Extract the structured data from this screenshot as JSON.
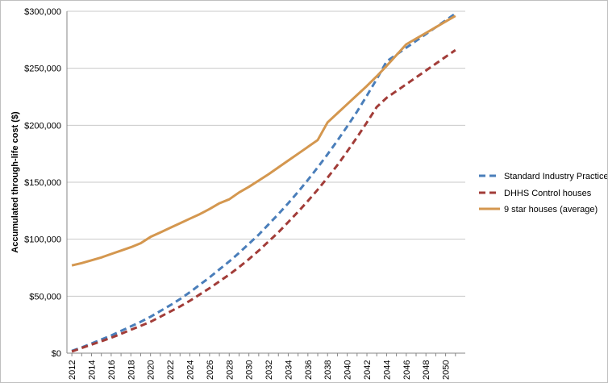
{
  "chart_data": {
    "type": "line",
    "title": "",
    "xlabel": "",
    "ylabel": "Accumulated through-life cost ($)",
    "ylim": [
      0,
      300000
    ],
    "y_ticks": [
      "$0",
      "$50,000",
      "$100,000",
      "$150,000",
      "$200,000",
      "$250,000",
      "$300,000"
    ],
    "x_ticks": [
      "2012",
      "2014",
      "2016",
      "2018",
      "2020",
      "2022",
      "2024",
      "2026",
      "2028",
      "2030",
      "2032",
      "2034",
      "2036",
      "2038",
      "2040",
      "2042",
      "2044",
      "2046",
      "2048",
      "2050"
    ],
    "grid": "horizontal",
    "legend_position": "right",
    "x": [
      2012,
      2013,
      2014,
      2015,
      2016,
      2017,
      2018,
      2019,
      2020,
      2021,
      2022,
      2023,
      2024,
      2025,
      2026,
      2027,
      2028,
      2029,
      2030,
      2031,
      2032,
      2033,
      2034,
      2035,
      2036,
      2037,
      2038,
      2039,
      2040,
      2041,
      2042,
      2043,
      2044,
      2045,
      2046,
      2047,
      2048,
      2049,
      2050,
      2051
    ],
    "series": [
      {
        "name": "Standard Industry Practice",
        "color": "#4a7eba",
        "style": "dashed",
        "values": [
          2000,
          5000,
          8500,
          12000,
          15500,
          19500,
          23500,
          27500,
          32000,
          37000,
          42000,
          47500,
          53500,
          60000,
          66500,
          73500,
          80500,
          88000,
          96000,
          104000,
          113000,
          122000,
          131500,
          141500,
          152000,
          163000,
          174500,
          186500,
          199000,
          212000,
          226000,
          240500,
          256000,
          262000,
          268000,
          274000,
          280000,
          286000,
          292000,
          298000
        ]
      },
      {
        "name": "DHHS Control houses",
        "color": "#a23c38",
        "style": "dashed",
        "values": [
          1500,
          4500,
          7500,
          10500,
          13500,
          17000,
          20500,
          24000,
          27500,
          32000,
          36500,
          41000,
          46000,
          51500,
          57000,
          63000,
          69000,
          75500,
          82500,
          90000,
          98000,
          106000,
          115000,
          124000,
          133500,
          143500,
          154000,
          165000,
          177000,
          189500,
          202500,
          216000,
          224000,
          230000,
          236000,
          242000,
          248000,
          254000,
          260000,
          266000
        ]
      },
      {
        "name": "9 star houses (average)",
        "color": "#d4974f",
        "style": "solid",
        "values": [
          77000,
          79000,
          81500,
          84000,
          87000,
          90000,
          93000,
          96500,
          102000,
          106000,
          110000,
          114000,
          118000,
          122000,
          126500,
          131500,
          135000,
          141000,
          146000,
          151500,
          157000,
          163000,
          169000,
          175000,
          181000,
          187000,
          202500,
          210500,
          218500,
          226500,
          234500,
          243000,
          252000,
          261500,
          271000,
          276000,
          281000,
          286000,
          291000,
          296000
        ]
      }
    ]
  }
}
